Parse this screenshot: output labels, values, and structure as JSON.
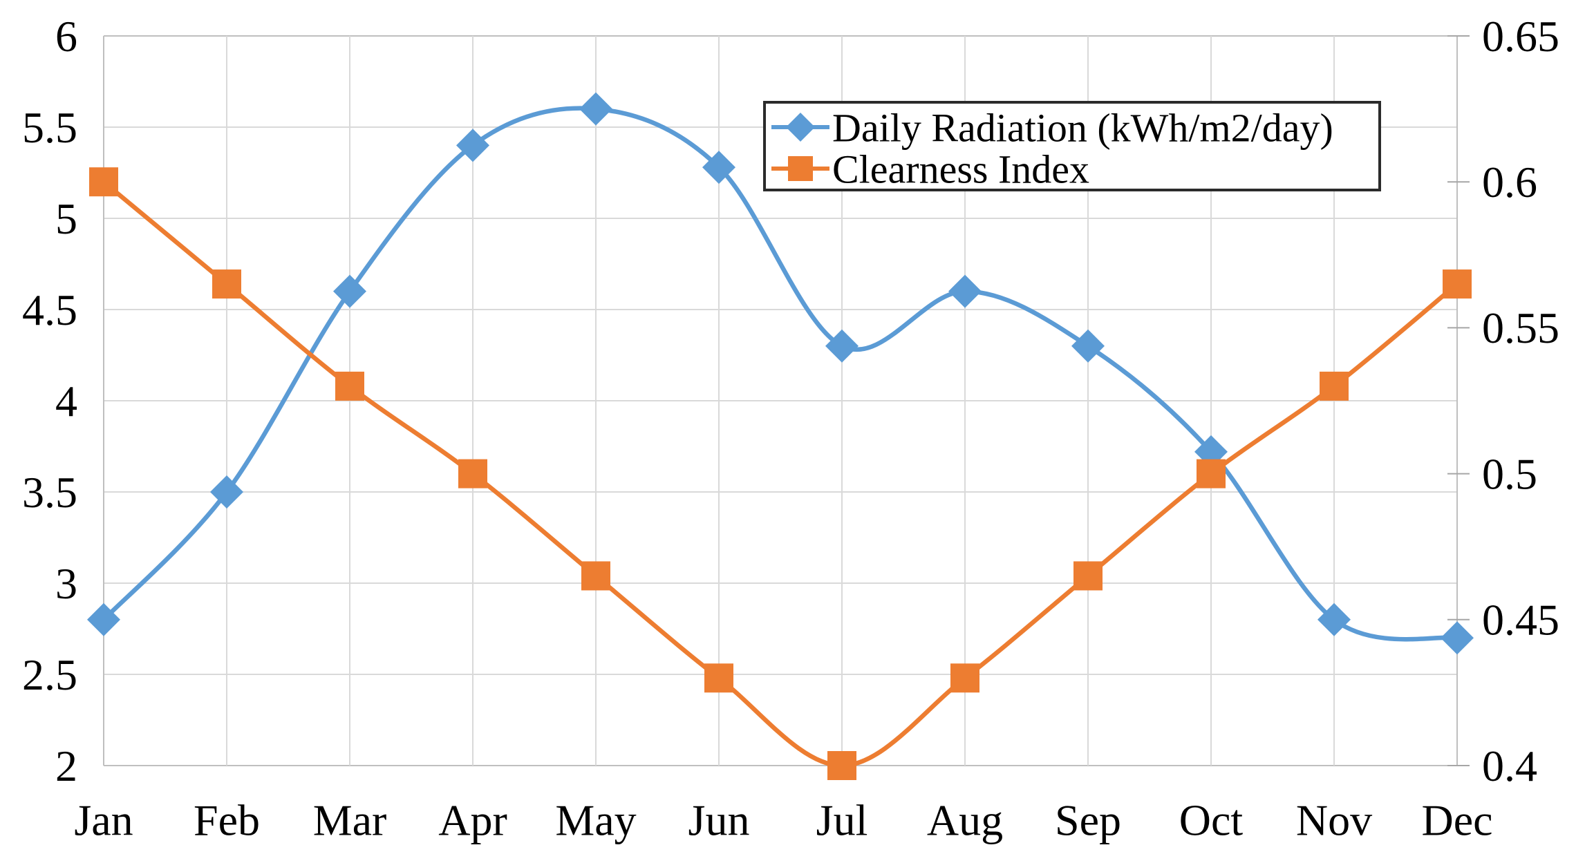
{
  "chart_data": {
    "type": "line",
    "title": "",
    "categories": [
      "Jan",
      "Feb",
      "Mar",
      "Apr",
      "May",
      "Jun",
      "Jul",
      "Aug",
      "Sep",
      "Oct",
      "Nov",
      "Dec"
    ],
    "series": [
      {
        "name": "Daily Radiation (kWh/m2/day)",
        "axis": "left",
        "color": "#5B9BD5",
        "marker": "diamond",
        "smooth": true,
        "values": [
          2.8,
          3.5,
          4.6,
          5.4,
          5.6,
          5.28,
          4.3,
          4.6,
          4.3,
          3.72,
          2.8,
          2.7
        ]
      },
      {
        "name": "Clearness Index",
        "axis": "right",
        "color": "#ED7D31",
        "marker": "square",
        "smooth": true,
        "values": [
          0.6,
          0.565,
          0.53,
          0.5,
          0.465,
          0.43,
          0.4,
          0.43,
          0.465,
          0.5,
          0.53,
          0.565
        ]
      }
    ],
    "left_axis": {
      "min": 2,
      "max": 6,
      "step": 0.5,
      "tick_labels": [
        "6",
        "5.5",
        "5",
        "4.5",
        "4",
        "3.5",
        "3",
        "2.5",
        "2"
      ]
    },
    "right_axis": {
      "min": 0.4,
      "max": 0.65,
      "step": 0.05,
      "tick_labels": [
        "0.65",
        "0.6",
        "0.55",
        "0.5",
        "0.45",
        "0.4"
      ]
    },
    "x_axis": {
      "tick_labels": [
        "Jan",
        "Feb",
        "Mar",
        "Apr",
        "May",
        "Jun",
        "Jul",
        "Aug",
        "Sep",
        "Oct",
        "Nov",
        "Dec"
      ]
    },
    "grid": {
      "horizontal": true,
      "vertical": true
    },
    "legend": {
      "position": "top-right-inside",
      "entries": [
        "Daily Radiation (kWh/m2/day)",
        "Clearness Index"
      ]
    },
    "styles": {
      "grid_color": "#D9D9D9",
      "frame_color": "#BFBFBF",
      "tick_color": "#A6A6A6",
      "legend_border_color": "#2B2B2B",
      "text_color": "#000000",
      "background": "#FFFFFF",
      "series_blue": "#5B9BD5",
      "series_orange": "#ED7D31"
    }
  }
}
